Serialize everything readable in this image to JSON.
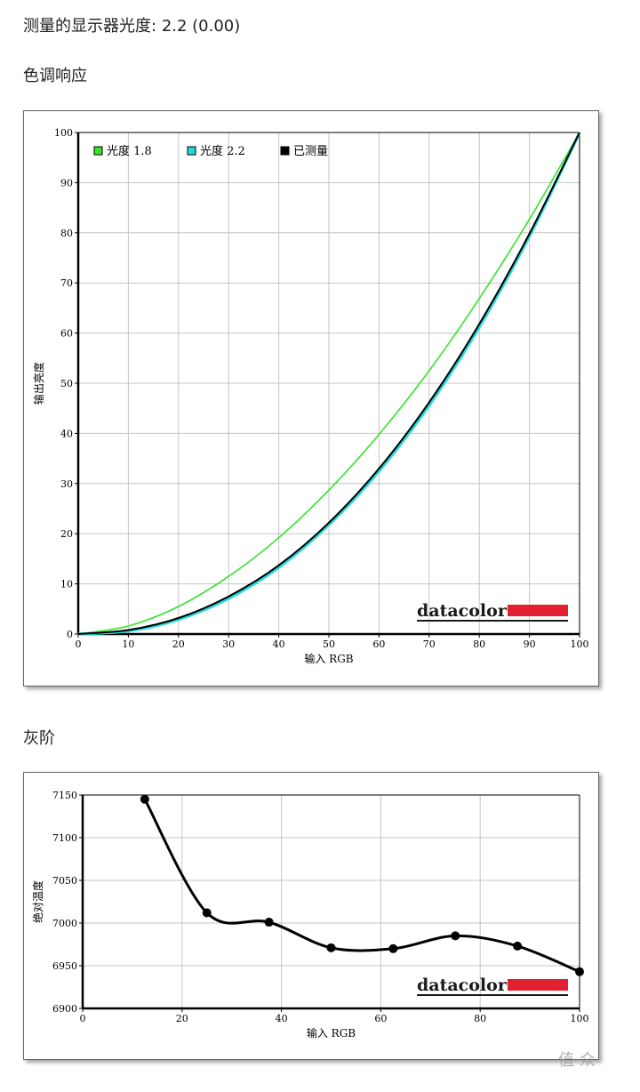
{
  "header": {
    "measured_label": "测量的显示器光度:",
    "measured_value": "2.2 (0.00)",
    "tone_title": "色调响应",
    "gray_title": "灰阶"
  },
  "logo": {
    "text": "datacolor",
    "bar_color": "#e3202f"
  },
  "watermark": "值 众",
  "chart_data": [
    {
      "type": "line",
      "xlabel": "输入 RGB",
      "ylabel": "输出亮度",
      "xlim": [
        0,
        100
      ],
      "ylim": [
        0,
        100
      ],
      "xticks": [
        0,
        10,
        20,
        30,
        40,
        50,
        60,
        70,
        80,
        90,
        100
      ],
      "yticks": [
        0,
        10,
        20,
        30,
        40,
        50,
        60,
        70,
        80,
        90,
        100
      ],
      "grid": true,
      "legend": "top-left",
      "series": [
        {
          "name": "光度 1.8",
          "color": "#33e52a",
          "x": [
            0,
            10,
            20,
            30,
            40,
            50,
            60,
            70,
            80,
            90,
            100
          ],
          "y": [
            0,
            1.6,
            5.5,
            11.5,
            19.2,
            28.7,
            39.8,
            52.5,
            66.9,
            82.7,
            100
          ]
        },
        {
          "name": "光度 2.2",
          "color": "#22d8d8",
          "x": [
            0,
            10,
            20,
            30,
            40,
            50,
            60,
            70,
            80,
            90,
            100
          ],
          "y": [
            0,
            0.6,
            2.9,
            7.1,
            13.3,
            21.8,
            32.5,
            45.6,
            61.2,
            79.3,
            100
          ]
        },
        {
          "name": "已测量",
          "color": "#000000",
          "x": [
            0,
            10,
            20,
            30,
            40,
            50,
            60,
            70,
            80,
            90,
            100
          ],
          "y": [
            0,
            0.8,
            3.2,
            7.5,
            13.7,
            22.2,
            33.0,
            46.2,
            61.8,
            79.8,
            100
          ]
        }
      ]
    },
    {
      "type": "line",
      "xlabel": "输入 RGB",
      "ylabel": "绝对温度",
      "xlim": [
        0,
        100
      ],
      "ylim": [
        6900,
        7150
      ],
      "xticks": [
        0,
        20,
        40,
        60,
        80,
        100
      ],
      "yticks": [
        6900,
        6950,
        7000,
        7050,
        7100,
        7150
      ],
      "grid": true,
      "series": [
        {
          "name": "",
          "color": "#000000",
          "x": [
            12.5,
            25,
            37.5,
            50,
            62.5,
            75,
            87.5,
            100
          ],
          "y": [
            7145,
            7012,
            7001,
            6971,
            6970,
            6985,
            6973,
            6943
          ]
        }
      ]
    }
  ]
}
